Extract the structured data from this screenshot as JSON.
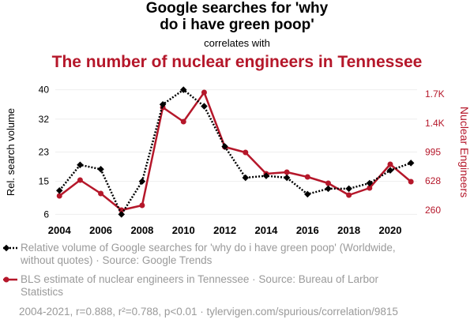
{
  "title_line1": "Google searches for 'why",
  "title_line2": "do i have green poop'",
  "correlates_text": "correlates with",
  "subtitle": "The number of nuclear engineers in Tennessee",
  "colors": {
    "series1": "#000000",
    "series2": "#b5172a",
    "muted": "#9a9a9a"
  },
  "legend": {
    "series1": "Relative volume of Google searches for 'why do i have green poop' (Worldwide, without quotes) · Source: Google Trends",
    "series2": "BLS estimate of nuclear engineers in Tennessee · Source: Bureau of Larbor Statistics"
  },
  "footer": "2004-2021, r=0.888, r²=0.788, p<0.01 · tylervigen.com/spurious/correlation/9815",
  "chart_data": {
    "type": "line",
    "x": [
      2004,
      2005,
      2006,
      2007,
      2008,
      2009,
      2010,
      2011,
      2012,
      2013,
      2014,
      2015,
      2016,
      2017,
      2018,
      2019,
      2020,
      2021
    ],
    "x_ticks": [
      "2004",
      "2006",
      "2008",
      "2010",
      "2012",
      "2014",
      "2016",
      "2018",
      "2020"
    ],
    "x_tick_values": [
      2004,
      2006,
      2008,
      2010,
      2012,
      2014,
      2016,
      2018,
      2020
    ],
    "xlim": [
      2003.8,
      2021.3
    ],
    "series": [
      {
        "name": "Relative volume of Google searches for 'why do i have green poop'",
        "axis": "left",
        "style": "dotted",
        "marker": "diamond",
        "values": [
          12.5,
          19.5,
          18.3,
          6,
          15,
          36,
          40,
          35.5,
          24.5,
          16,
          16.5,
          16,
          11.5,
          13,
          13,
          14.5,
          18,
          20
        ]
      },
      {
        "name": "BLS estimate of nuclear engineers in Tennessee",
        "axis": "right",
        "style": "solid",
        "marker": "circle",
        "values": [
          440,
          640,
          470,
          260,
          320,
          1560,
          1380,
          1750,
          1060,
          990,
          720,
          740,
          680,
          600,
          450,
          540,
          840,
          620
        ]
      }
    ],
    "y_left": {
      "label": "Rel. search volume",
      "ticks": [
        "40",
        "32",
        "23",
        "15",
        "6"
      ],
      "tick_values": [
        40,
        32,
        23,
        15,
        6
      ],
      "ylim": [
        5,
        41
      ]
    },
    "y_right": {
      "label": "Nuclear Engineers",
      "ticks": [
        "1.7K",
        "1.4K",
        "995",
        "628",
        "260"
      ],
      "tick_values": [
        1730,
        1362,
        995,
        628,
        260
      ],
      "ylim": [
        160,
        1830
      ]
    }
  }
}
